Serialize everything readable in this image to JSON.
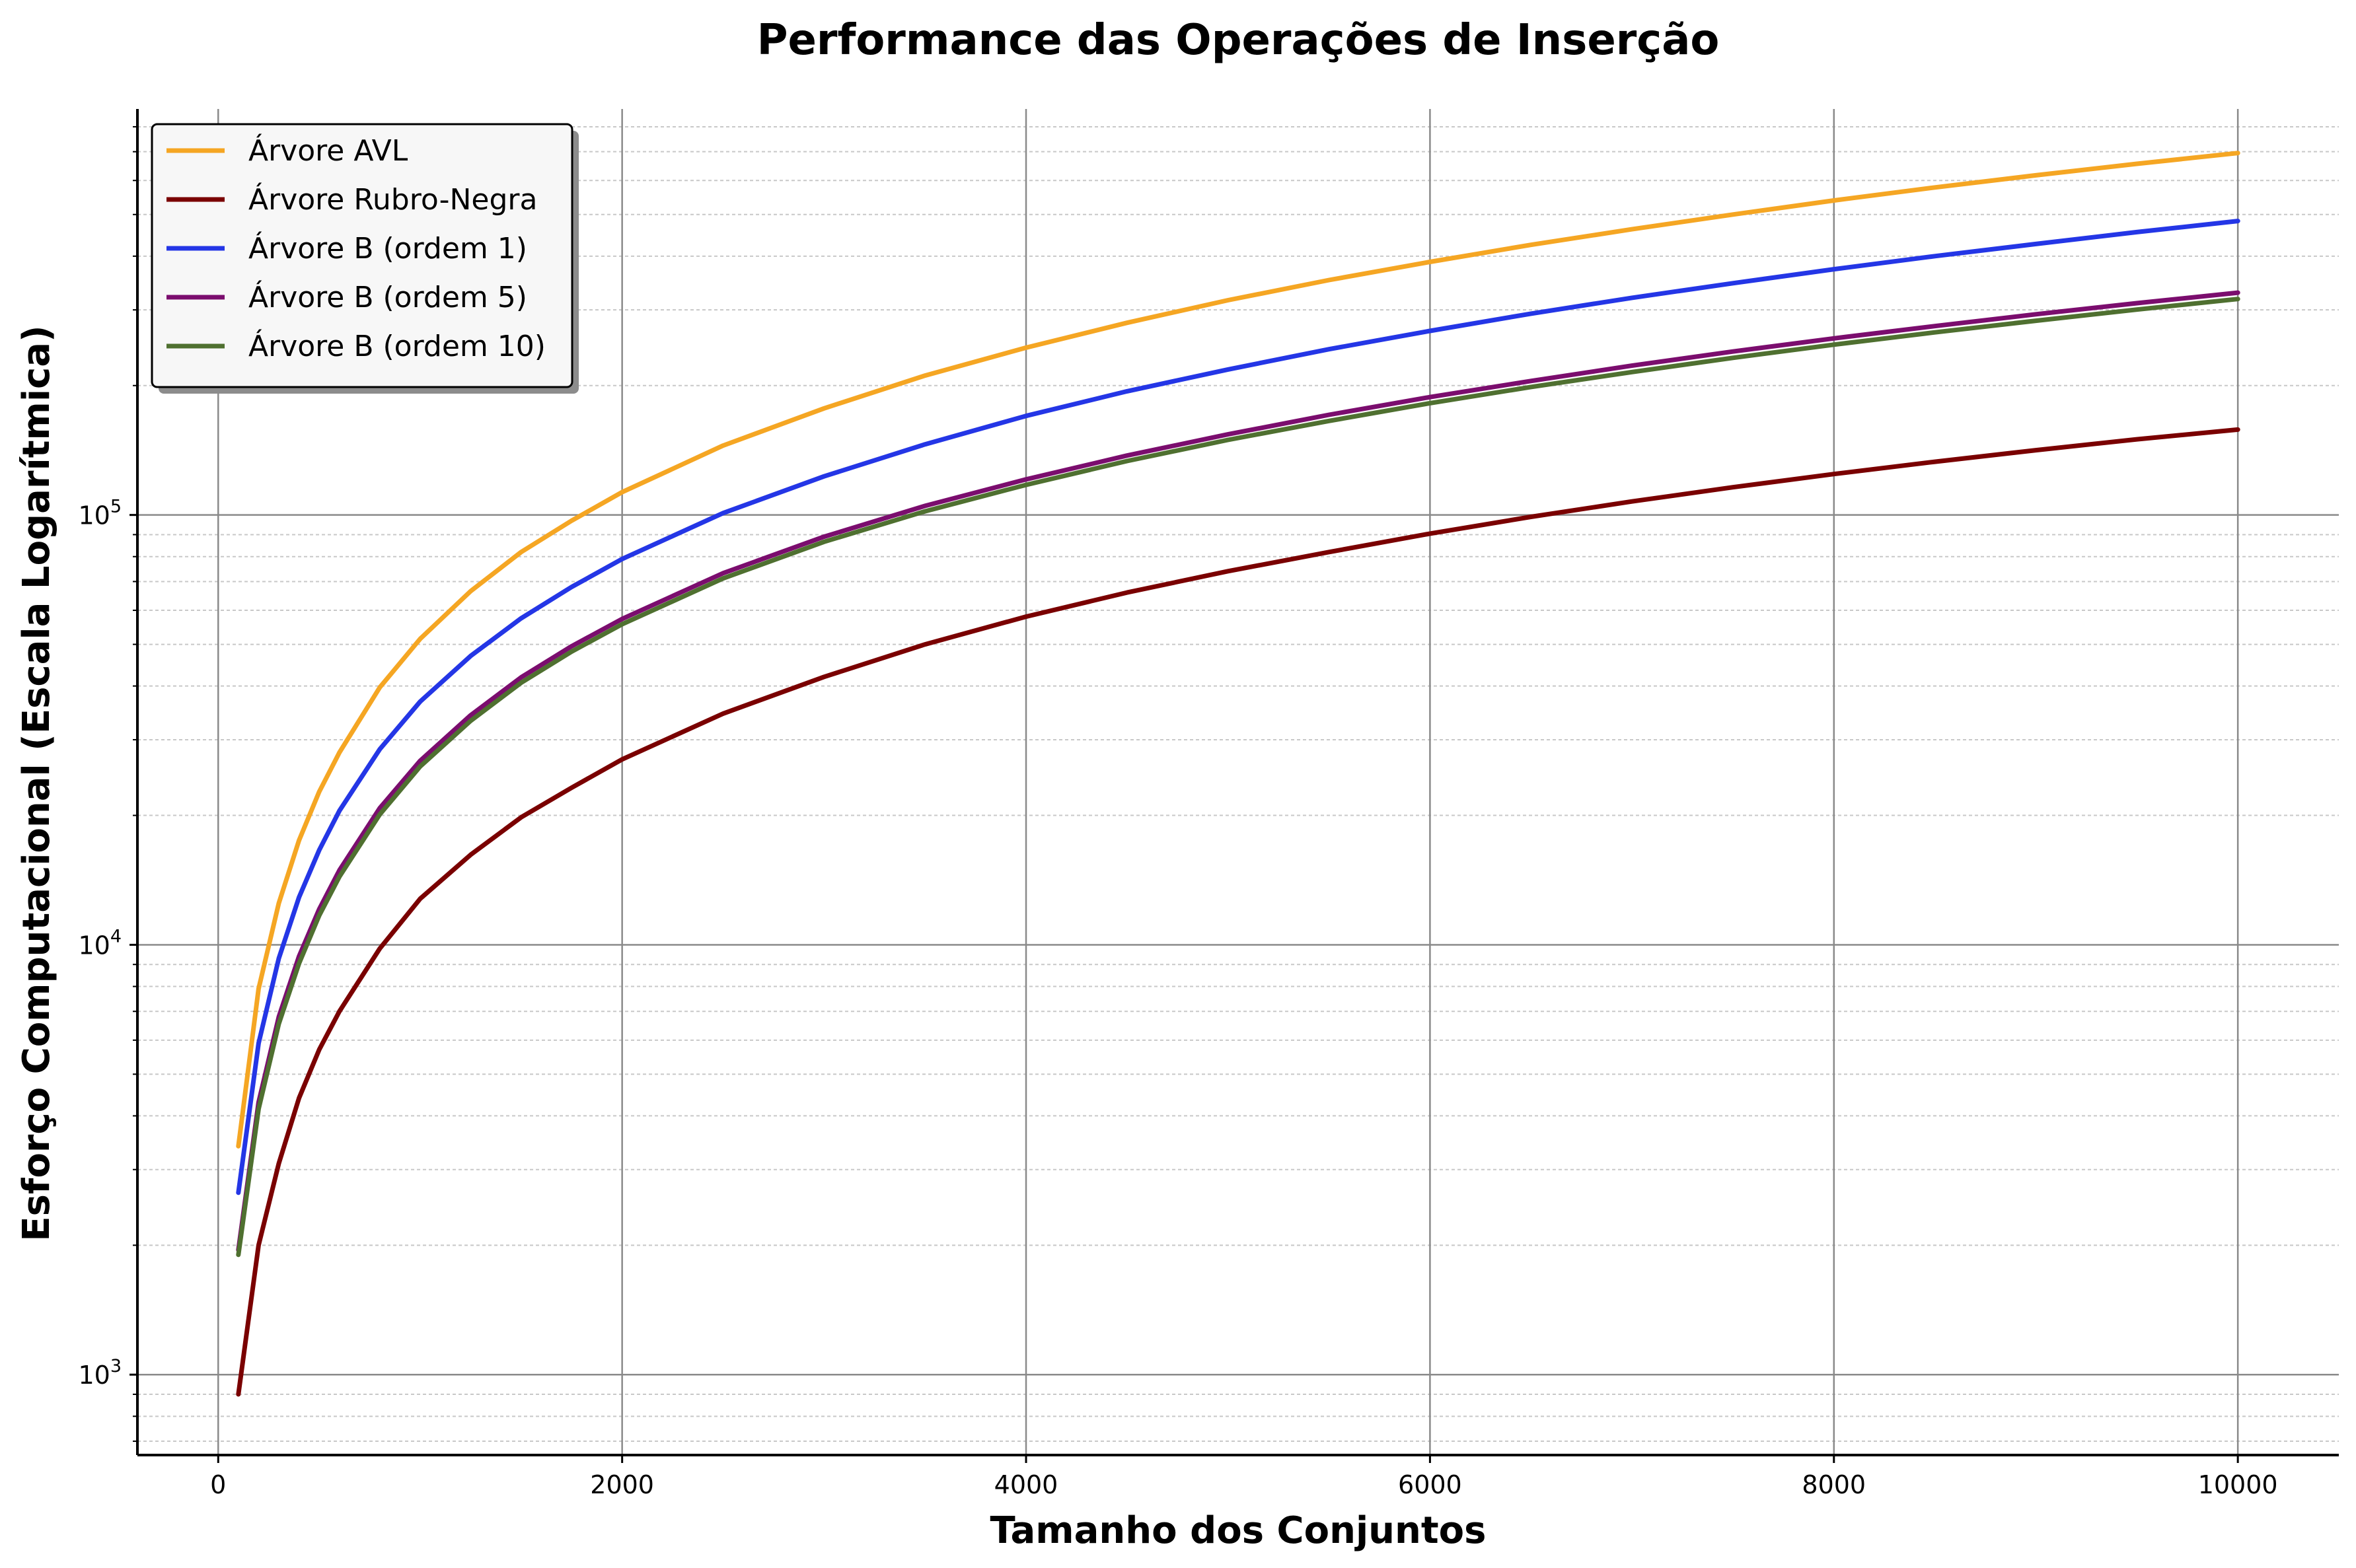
{
  "chart_data": {
    "type": "line",
    "title": "Performance das Operações de Inserção",
    "xlabel": "Tamanho dos Conjuntos",
    "ylabel": "Esforço Computacional (Escala Logarítmica)",
    "xlim": [
      -400,
      10500
    ],
    "ylim": [
      650,
      880000
    ],
    "yscale": "log",
    "xticks": [
      0,
      2000,
      4000,
      6000,
      8000,
      10000
    ],
    "xtick_labels": [
      "0",
      "2000",
      "4000",
      "6000",
      "8000",
      "10000"
    ],
    "yticks": [
      1000,
      10000,
      100000
    ],
    "ytick_labels": [
      {
        "base": "10",
        "exp": "3"
      },
      {
        "base": "10",
        "exp": "4"
      },
      {
        "base": "10",
        "exp": "5"
      }
    ],
    "grid": true,
    "legend_position": "top-left",
    "x": [
      100,
      200,
      300,
      400,
      500,
      600,
      800,
      1000,
      1250,
      1500,
      1750,
      2000,
      2500,
      3000,
      3500,
      4000,
      4500,
      5000,
      5500,
      6000,
      6500,
      7000,
      7500,
      8000,
      8500,
      9000,
      9500,
      10000
    ],
    "series": [
      {
        "name": "Árvore AVL",
        "color": "#f5a623",
        "values": [
          3400,
          7900,
          12500,
          17500,
          22700,
          28000,
          39700,
          51500,
          66500,
          82000,
          97000,
          113000,
          145000,
          177000,
          211000,
          245000,
          280000,
          316000,
          352000,
          388000,
          425000,
          462000,
          500000,
          539000,
          578000,
          617000,
          656000,
          695000
        ]
      },
      {
        "name": "Árvore Rubro-Negra",
        "color": "#7a0000",
        "values": [
          900,
          2000,
          3100,
          4400,
          5700,
          7000,
          9800,
          12800,
          16200,
          19800,
          23200,
          27000,
          34500,
          42000,
          50000,
          58000,
          66000,
          74000,
          82000,
          90500,
          99000,
          107500,
          116000,
          124500,
          133000,
          141500,
          150000,
          158000
        ]
      },
      {
        "name": "Árvore B (ordem 1)",
        "color": "#2436e6",
        "values": [
          2650,
          5900,
          9300,
          12900,
          16600,
          20500,
          28500,
          36800,
          47000,
          57500,
          68000,
          79000,
          101000,
          123000,
          146000,
          170000,
          194000,
          218000,
          243000,
          268000,
          294000,
          320000,
          346000,
          373000,
          400000,
          427000,
          455000,
          483000
        ]
      },
      {
        "name": "Árvore B (ordem 5)",
        "color": "#7b0d6e",
        "values": [
          1950,
          4300,
          6800,
          9400,
          12100,
          14900,
          20800,
          26800,
          34200,
          41900,
          49500,
          57300,
          73200,
          89000,
          105000,
          121000,
          137500,
          154000,
          171000,
          188000,
          205000,
          222500,
          240000,
          257500,
          275000,
          293000,
          311000,
          329000
        ]
      },
      {
        "name": "Árvore B (ordem 10)",
        "color": "#4f7030",
        "values": [
          1900,
          4150,
          6550,
          9050,
          11700,
          14400,
          20100,
          26000,
          33200,
          40700,
          48100,
          55700,
          71200,
          86600,
          102000,
          117500,
          133500,
          149500,
          165500,
          182000,
          198500,
          215000,
          232000,
          249000,
          266000,
          283000,
          300500,
          318000
        ]
      }
    ]
  }
}
